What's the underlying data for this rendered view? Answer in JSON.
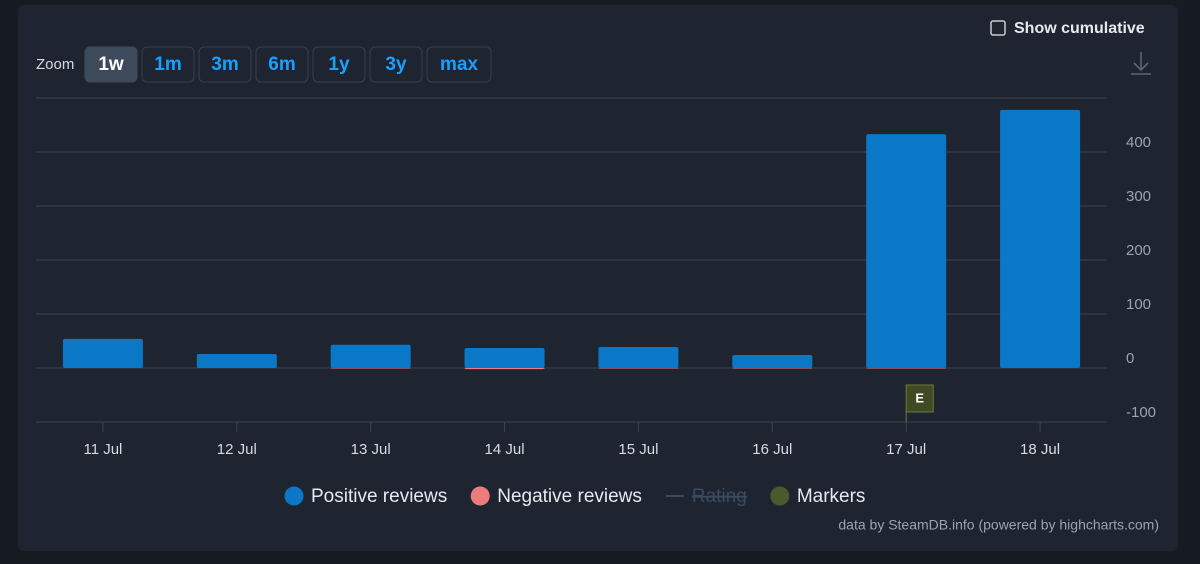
{
  "ui": {
    "zoom_label": "Zoom",
    "zoom_options": [
      "1w",
      "1m",
      "3m",
      "6m",
      "1y",
      "3y",
      "max"
    ],
    "zoom_active": 0,
    "cumulative_label": "Show cumulative",
    "credits": "data by SteamDB.info (powered by highcharts.com)"
  },
  "chart_data": {
    "type": "bar",
    "categories": [
      "11 Jul",
      "12 Jul",
      "13 Jul",
      "14 Jul",
      "15 Jul",
      "16 Jul",
      "17 Jul",
      "18 Jul"
    ],
    "series": [
      {
        "name": "Positive reviews",
        "color": "#0a78c6",
        "values": [
          54,
          26,
          43,
          37,
          39,
          24,
          433,
          478
        ]
      },
      {
        "name": "Negative reviews",
        "color": "#ee7b7b",
        "values": [
          0,
          0,
          -1,
          -2,
          -1,
          -1,
          -1,
          0
        ]
      }
    ],
    "legend_extra": [
      {
        "name": "Rating",
        "hidden": true,
        "color": "#3a4a60"
      },
      {
        "name": "Markers",
        "color": "#4b5a2c"
      }
    ],
    "markers": [
      {
        "x": "17 Jul",
        "label": "E",
        "color": "#3f4a22"
      }
    ],
    "ylim": [
      -100,
      500
    ],
    "yticks": [
      -100,
      0,
      100,
      200,
      300,
      400
    ],
    "grid": true
  }
}
